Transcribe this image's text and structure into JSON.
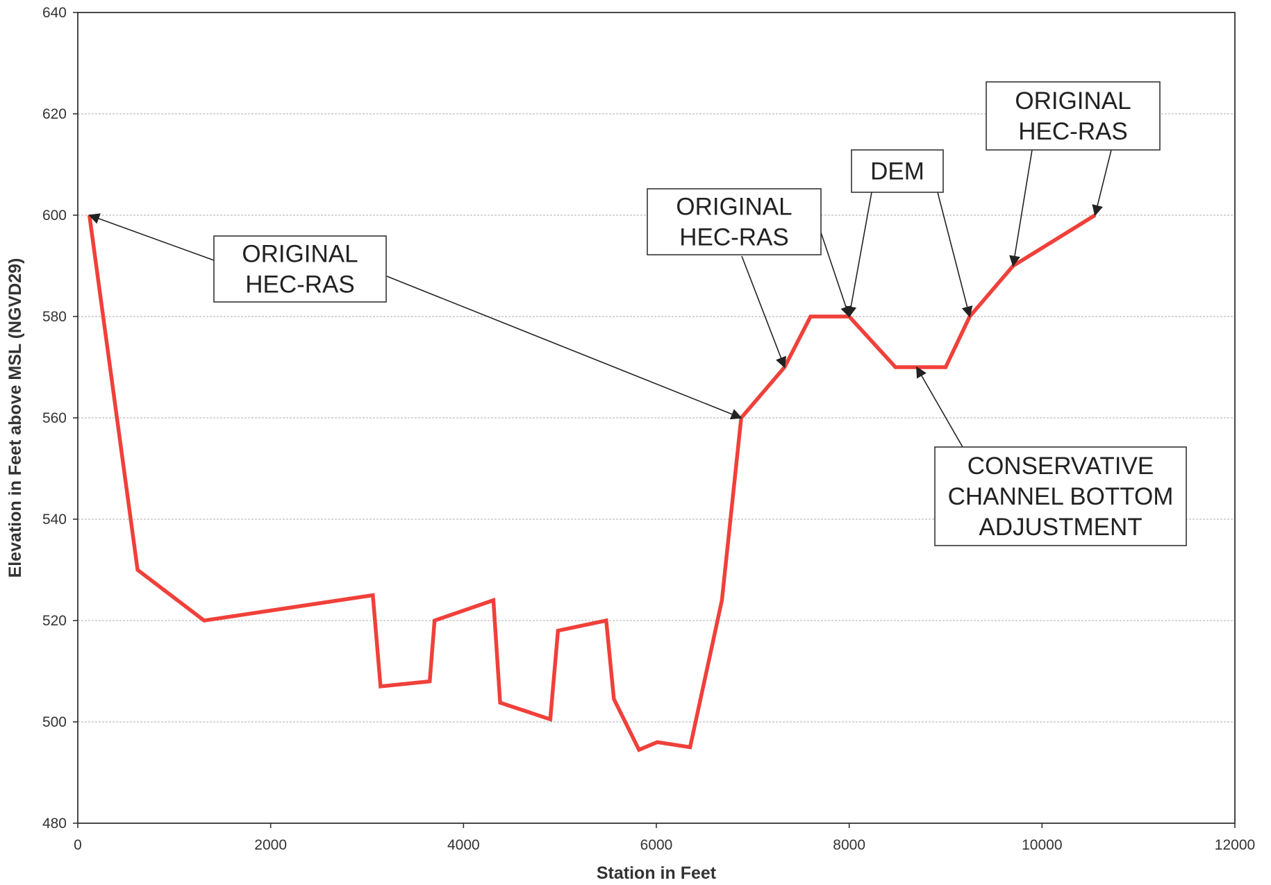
{
  "chart_data": {
    "type": "line",
    "xlabel": "Station in Feet",
    "ylabel": "Elevation in Feet above MSL (NGVD29)",
    "xlim": [
      0,
      12000
    ],
    "ylim": [
      480,
      640
    ],
    "xticks": [
      0,
      2000,
      4000,
      6000,
      8000,
      10000,
      12000
    ],
    "yticks": [
      480,
      500,
      520,
      540,
      560,
      580,
      600,
      620,
      640
    ],
    "grid": true,
    "line_color": "#f0403a",
    "series": [
      {
        "x": [
          120,
          620,
          1310,
          3060,
          3140,
          3650,
          3700,
          4310,
          4380,
          4900,
          4980,
          5480,
          5560,
          5820,
          6010,
          6350,
          6680,
          6880,
          7330,
          7600,
          8000,
          8480,
          9000,
          9250,
          9700,
          10550
        ],
        "y": [
          600,
          530,
          520,
          525,
          507,
          508,
          520,
          524,
          503.8,
          500.5,
          518,
          520,
          504.5,
          494.5,
          496,
          495,
          524,
          560,
          570,
          580,
          580,
          570,
          570,
          580,
          590,
          600
        ]
      }
    ],
    "annotations": [
      {
        "id": "original-hecras-left",
        "lines": [
          "ORIGINAL",
          "HEC-RAS"
        ],
        "points_to": [
          [
            120,
            600
          ],
          [
            6880,
            560
          ]
        ]
      },
      {
        "id": "original-hecras-mid",
        "lines": [
          "ORIGINAL",
          "HEC-RAS"
        ],
        "points_to": [
          [
            7330,
            570
          ],
          [
            8000,
            580
          ]
        ]
      },
      {
        "id": "dem",
        "lines": [
          "DEM"
        ],
        "points_to": [
          [
            8000,
            580
          ],
          [
            9250,
            580
          ]
        ]
      },
      {
        "id": "original-hecras-right",
        "lines": [
          "ORIGINAL",
          "HEC-RAS"
        ],
        "points_to": [
          [
            9700,
            590
          ],
          [
            10550,
            600
          ]
        ]
      },
      {
        "id": "conservative-adjustment",
        "lines": [
          "CONSERVATIVE",
          "CHANNEL BOTTOM",
          "ADJUSTMENT"
        ],
        "points_to": [
          [
            8700,
            570
          ]
        ]
      }
    ]
  }
}
